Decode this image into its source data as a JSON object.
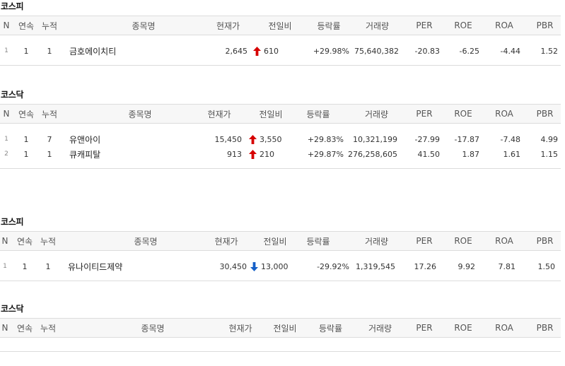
{
  "colors": {
    "up": "#d60000",
    "down": "#1660c8",
    "border": "#dcdcdc",
    "header_bg": "#f7f7f7"
  },
  "headers": [
    "N",
    "연속",
    "누적",
    "종목명",
    "현재가",
    "전일비",
    "등락률",
    "거래량",
    "PER",
    "ROE",
    "ROA",
    "PBR"
  ],
  "sections": [
    {
      "title": "코스피",
      "rows": [
        {
          "n": "1",
          "streak": "1",
          "total": "1",
          "name": "금호에이치티",
          "price": "2,645",
          "direction": "up",
          "arrow_icon": "arrow-up-icon",
          "change": "610",
          "rate": "+29.98%",
          "volume": "75,640,382",
          "per": "-20.83",
          "roe": "-6.25",
          "roa": "-4.44",
          "pbr": "1.52"
        }
      ]
    },
    {
      "title": "코스닥",
      "rows": [
        {
          "n": "1",
          "streak": "1",
          "total": "7",
          "name": "유앤아이",
          "price": "15,450",
          "direction": "up",
          "arrow_icon": "arrow-up-icon",
          "change": "3,550",
          "rate": "+29.83%",
          "volume": "10,321,199",
          "per": "-27.99",
          "roe": "-17.87",
          "roa": "-7.48",
          "pbr": "4.99"
        },
        {
          "n": "2",
          "streak": "1",
          "total": "1",
          "name": "큐캐피탈",
          "price": "913",
          "direction": "up",
          "arrow_icon": "arrow-up-icon",
          "change": "210",
          "rate": "+29.87%",
          "volume": "276,258,605",
          "per": "41.50",
          "roe": "1.87",
          "roa": "1.61",
          "pbr": "1.15"
        }
      ]
    },
    {
      "title": "코스피",
      "rows": [
        {
          "n": "1",
          "streak": "1",
          "total": "1",
          "name": "유나이티드제약",
          "price": "30,450",
          "direction": "down",
          "arrow_icon": "arrow-down-icon",
          "change": "13,000",
          "rate": "-29.92%",
          "volume": "1,319,545",
          "per": "17.26",
          "roe": "9.92",
          "roa": "7.81",
          "pbr": "1.50"
        }
      ]
    },
    {
      "title": "코스닥",
      "rows": []
    }
  ]
}
